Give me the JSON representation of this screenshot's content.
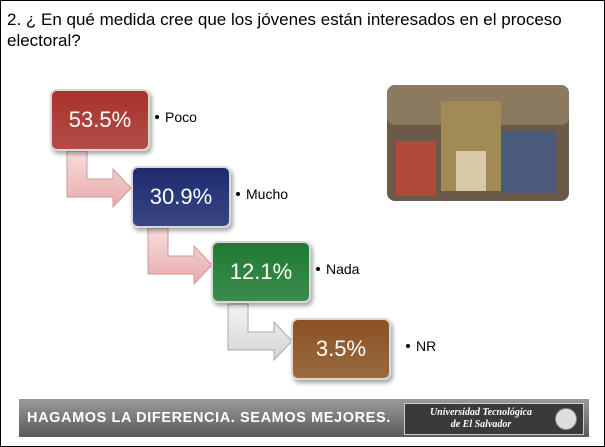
{
  "slide": {
    "title": "2. ¿ En qué medida cree que los jóvenes están interesados en el proceso electoral?",
    "items": [
      {
        "value": "53.5%",
        "label": "Poco",
        "color": "#a8322a"
      },
      {
        "value": "30.9%",
        "label": "Mucho",
        "color": "#1c2a70"
      },
      {
        "value": "12.1%",
        "label": "Nada",
        "color": "#1f7a32"
      },
      {
        "value": "3.5%",
        "label": "NR",
        "color": "#8a5222"
      }
    ],
    "footer": {
      "slogan": "HAGAMOS LA DIFERENCIA. SEAMOS MEJORES.",
      "logo": [
        "Universidad Tecnológica",
        "de El Salvador"
      ]
    }
  }
}
